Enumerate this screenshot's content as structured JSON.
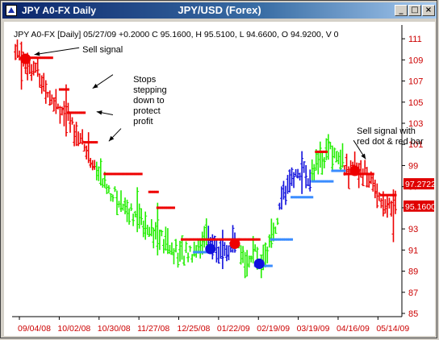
{
  "window": {
    "title": "JPY A0-FX Daily",
    "chart_title": "JPY/USD (Forex)",
    "minimize_glyph": "_",
    "restore_glyph": "□",
    "close_glyph": "×"
  },
  "chart_data": {
    "type": "bar",
    "info_line": "JPY A0-FX [Daily] 05/27/09 +0.2000 C 95.1600, H 95.5100, L 94.6600, O 94.9200, V 0",
    "x_tick_labels": [
      "09/04/08",
      "10/02/08",
      "10/30/08",
      "11/27/08",
      "12/25/08",
      "01/22/09",
      "02/19/09",
      "03/19/09",
      "04/16/09",
      "05/14/09"
    ],
    "y_axis": {
      "min": 85,
      "max": 112,
      "ticks": [
        85,
        87,
        89,
        91,
        93,
        95,
        97,
        99,
        101,
        103,
        105,
        107,
        109,
        111
      ],
      "position": "right"
    },
    "price_tags": [
      {
        "label": "97.2722",
        "value": 97.27,
        "color": "#e00000"
      },
      {
        "label": "95.1600",
        "value": 95.16,
        "color": "#e00000"
      }
    ],
    "colors": {
      "up": "#22ee00",
      "down": "#ee0000",
      "blue": "#1010dd",
      "red_stop": "#ee0000",
      "blue_stop": "#3a8cff",
      "axis_text": "#cc0000"
    },
    "bar_count": 188,
    "segments": [
      {
        "from": 0,
        "to": 40,
        "color": "down"
      },
      {
        "from": 40,
        "to": 95,
        "color": "up"
      },
      {
        "from": 95,
        "to": 110,
        "color": "blue"
      },
      {
        "from": 110,
        "to": 130,
        "color": "up"
      },
      {
        "from": 130,
        "to": 146,
        "color": "blue"
      },
      {
        "from": 146,
        "to": 162,
        "color": "up"
      },
      {
        "from": 162,
        "to": 188,
        "color": "down"
      }
    ],
    "price_path": [
      [
        0,
        109.8
      ],
      [
        8,
        108.5
      ],
      [
        15,
        106.5
      ],
      [
        22,
        104.5
      ],
      [
        28,
        103.0
      ],
      [
        35,
        100.5
      ],
      [
        40,
        98.5
      ],
      [
        45,
        97.0
      ],
      [
        52,
        95.5
      ],
      [
        58,
        94.5
      ],
      [
        65,
        93.5
      ],
      [
        72,
        92.0
      ],
      [
        80,
        90.5
      ],
      [
        88,
        91.0
      ],
      [
        95,
        92.5
      ],
      [
        100,
        90.5
      ],
      [
        108,
        91.5
      ],
      [
        112,
        90.0
      ],
      [
        118,
        90.5
      ],
      [
        122,
        89.8
      ],
      [
        125,
        91.5
      ],
      [
        128,
        93.0
      ],
      [
        132,
        96.0
      ],
      [
        136,
        98.0
      ],
      [
        140,
        98.5
      ],
      [
        145,
        98.0
      ],
      [
        150,
        99.5
      ],
      [
        155,
        100.5
      ],
      [
        160,
        99.5
      ],
      [
        165,
        98.5
      ],
      [
        170,
        98.8
      ],
      [
        175,
        97.5
      ],
      [
        180,
        96.0
      ],
      [
        184,
        95.0
      ],
      [
        187,
        95.16
      ]
    ],
    "stop_runs": [
      {
        "from": 3,
        "to": 18,
        "value": 109.2,
        "color": "red_stop"
      },
      {
        "from": 22,
        "to": 26,
        "value": 106.2,
        "color": "red_stop"
      },
      {
        "from": 26,
        "to": 34,
        "value": 104.0,
        "color": "red_stop"
      },
      {
        "from": 34,
        "to": 40,
        "value": 101.2,
        "color": "red_stop"
      },
      {
        "from": 44,
        "to": 62,
        "value": 98.2,
        "color": "red_stop"
      },
      {
        "from": 66,
        "to": 70,
        "value": 96.5,
        "color": "red_stop"
      },
      {
        "from": 70,
        "to": 78,
        "value": 95.0,
        "color": "red_stop"
      },
      {
        "from": 82,
        "to": 110,
        "value": 92.0,
        "color": "red_stop"
      },
      {
        "from": 110,
        "to": 120,
        "value": 92.0,
        "color": "red_stop"
      },
      {
        "from": 88,
        "to": 96,
        "value": 90.8,
        "color": "blue_stop"
      },
      {
        "from": 118,
        "to": 126,
        "value": 89.5,
        "color": "blue_stop"
      },
      {
        "from": 126,
        "to": 136,
        "value": 92.0,
        "color": "blue_stop"
      },
      {
        "from": 136,
        "to": 146,
        "value": 96.0,
        "color": "blue_stop"
      },
      {
        "from": 146,
        "to": 156,
        "value": 97.5,
        "color": "blue_stop"
      },
      {
        "from": 156,
        "to": 162,
        "value": 98.5,
        "color": "blue_stop"
      },
      {
        "from": 148,
        "to": 153,
        "value": 100.3,
        "color": "red_stop"
      },
      {
        "from": 162,
        "to": 176,
        "value": 98.2,
        "color": "red_stop"
      },
      {
        "from": 180,
        "to": 187,
        "value": 96.2,
        "color": "red_stop"
      }
    ],
    "signal_dots": [
      {
        "x": 5,
        "value": 109.1,
        "color": "#ee0000"
      },
      {
        "x": 96,
        "value": 91.1,
        "color": "#1010dd"
      },
      {
        "x": 108,
        "value": 91.6,
        "color": "#ee0000"
      },
      {
        "x": 120,
        "value": 89.7,
        "color": "#1010dd"
      },
      {
        "x": 167,
        "value": 98.5,
        "color": "#ee0000"
      }
    ],
    "annotations": [
      {
        "lines": [
          "Sell signal"
        ],
        "value": 110.0,
        "x": 33,
        "arrow_to": [
          7,
          109.2
        ]
      },
      {
        "lines": [
          "Stops",
          "stepping",
          "down to",
          "protect",
          "profit"
        ],
        "value": 107.2,
        "x": 58,
        "arrows": [
          [
            [
              48,
              107.6
            ],
            [
              38,
              106.3
            ]
          ],
          [
            [
              48,
              103.8
            ],
            [
              40,
              104.1
            ]
          ],
          [
            [
              52,
              102.5
            ],
            [
              46,
              101.3
            ]
          ]
        ]
      },
      {
        "lines": [
          "Sell signal with",
          "red dot & red bar"
        ],
        "value": 102.3,
        "x": 168,
        "arrow_to": [
          170,
          99.3
        ]
      }
    ]
  }
}
